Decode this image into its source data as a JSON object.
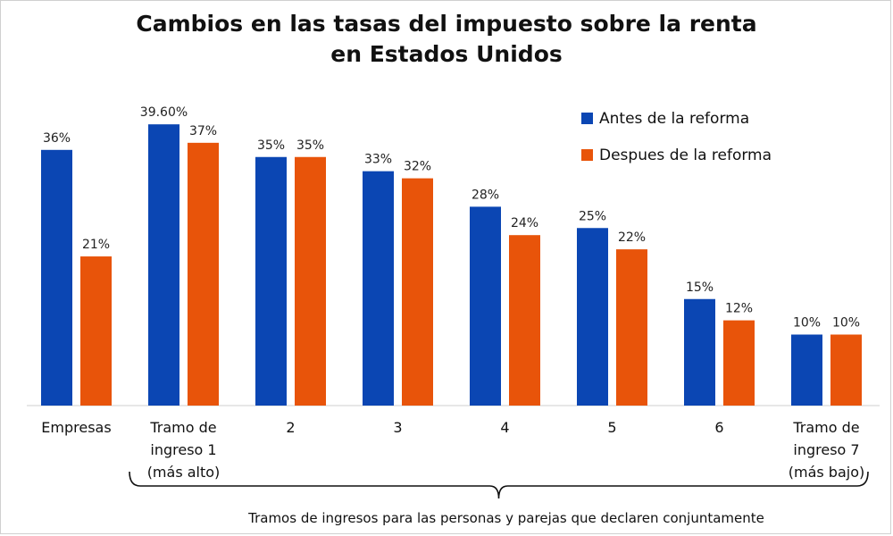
{
  "chart_data": {
    "type": "bar",
    "title_line1": "Cambios en las tasas del impuesto sobre la renta",
    "title_line2": "en Estados Unidos",
    "xlabel": "Tramos de ingresos para las personas y parejas que declaren conjuntamente",
    "categories": [
      [
        "Empresas"
      ],
      [
        "Tramo de",
        "ingreso 1",
        "(más alto)"
      ],
      [
        "2"
      ],
      [
        "3"
      ],
      [
        "4"
      ],
      [
        "5"
      ],
      [
        "6"
      ],
      [
        "Tramo de",
        "ingreso 7",
        "(más bajo)"
      ]
    ],
    "series": [
      {
        "name": "Antes de la reforma",
        "color": "#0b46b3",
        "values": [
          36,
          39.6,
          35,
          33,
          28,
          25,
          15,
          10
        ],
        "labels": [
          "36%",
          "39.60%",
          "35%",
          "33%",
          "28%",
          "25%",
          "15%",
          "10%"
        ]
      },
      {
        "name": "Despues de la reforma",
        "color": "#e8540a",
        "values": [
          21,
          37,
          35,
          32,
          24,
          22,
          12,
          10
        ],
        "labels": [
          "21%",
          "37%",
          "35%",
          "32%",
          "24%",
          "22%",
          "12%",
          "10%"
        ]
      }
    ],
    "ylim": [
      0,
      40
    ],
    "legend_position": "top-right",
    "grid": false
  }
}
